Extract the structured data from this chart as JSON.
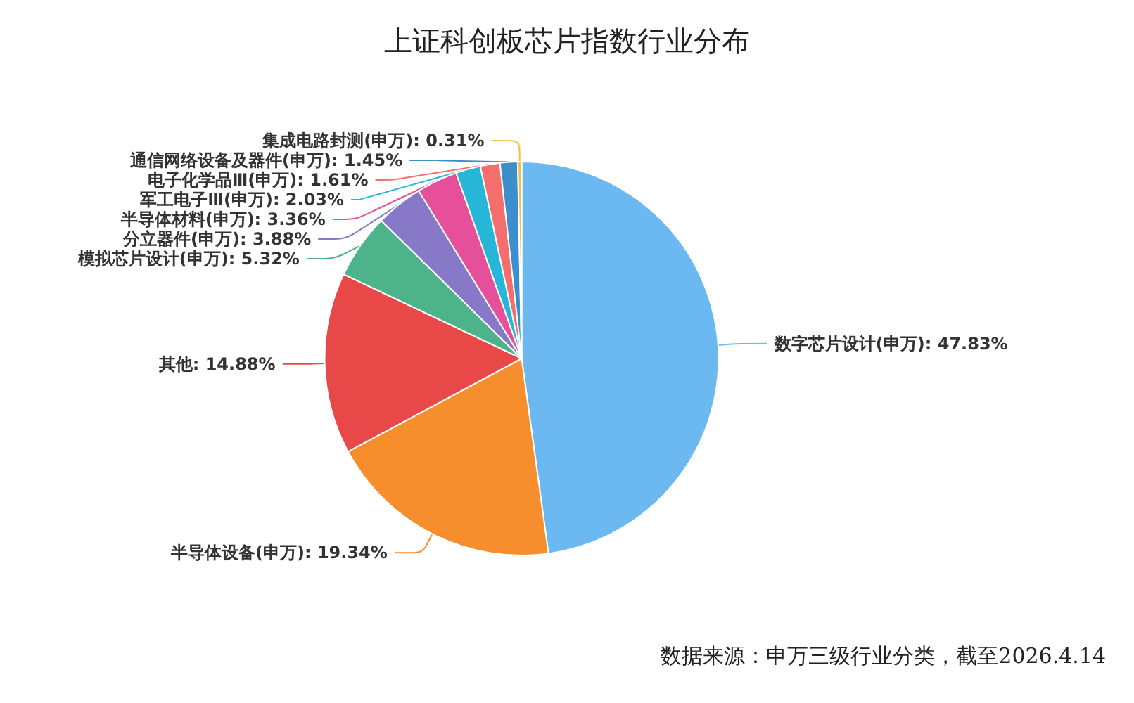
{
  "chart_data": {
    "type": "pie",
    "title": "上证科创板芯片指数行业分布",
    "categories": [
      "数字芯片设计(申万)",
      "半导体设备(申万)",
      "其他",
      "模拟芯片设计(申万)",
      "分立器件(申万)",
      "半导体材料(申万)",
      "军工电子Ⅲ(申万)",
      "电子化学品Ⅲ(申万)",
      "通信网络设备及器件(申万)",
      "集成电路封测(申万)"
    ],
    "values": [
      47.83,
      19.34,
      14.88,
      5.32,
      3.88,
      3.36,
      2.03,
      1.61,
      1.45,
      0.31
    ],
    "colors": [
      "#6cb8f0",
      "#f78e2d",
      "#e84848",
      "#4db38a",
      "#8878c8",
      "#e6509a",
      "#26b6d8",
      "#f56e6e",
      "#3d8fcc",
      "#f0c040"
    ],
    "value_labels": [
      "47.83%",
      "19.34%",
      "14.88%",
      "5.32%",
      "3.88%",
      "3.36%",
      "2.03%",
      "1.61%",
      "1.45%",
      "0.31%"
    ],
    "annotations": [
      "数据来源：申万三级行业分类，截至2026.4.14"
    ],
    "legend": false
  }
}
